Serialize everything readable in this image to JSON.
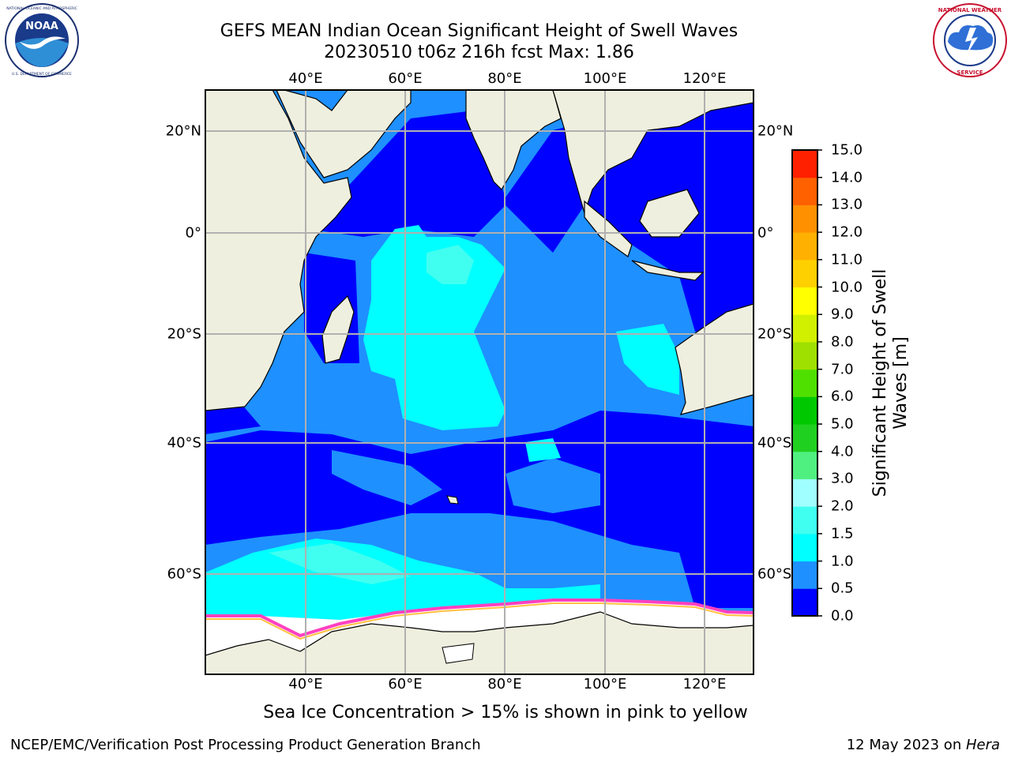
{
  "title_line1": "GEFS MEAN Indian Ocean Significant Height of Swell Waves",
  "title_line2": "20230510 t06z 216h fcst   Max: 1.86",
  "logos": {
    "left": {
      "name": "NOAA",
      "ring_text": "NATIONAL OCEANIC AND ATMOSPHERIC ADMINISTRATION",
      "bottom_text": "U.S. DEPARTMENT OF COMMERCE"
    },
    "right": {
      "name": "National Weather Service",
      "ring_text": "NATIONAL WEATHER SERVICE"
    }
  },
  "axes": {
    "lon_labels": [
      "40°E",
      "60°E",
      "80°E",
      "100°E",
      "120°E"
    ],
    "lat_labels": [
      "20°N",
      "0°",
      "20°S",
      "40°S",
      "60°S"
    ]
  },
  "colorbar": {
    "label": "Significant Height of Swell Waves [m]",
    "label_line1": "Significant Height of Swell",
    "label_line2": "Waves [m]",
    "ticks": [
      "15.0",
      "14.0",
      "13.0",
      "12.0",
      "11.0",
      "10.0",
      "9.0",
      "8.0",
      "7.0",
      "6.0",
      "5.0",
      "4.0",
      "3.0",
      "2.0",
      "1.5",
      "1.0",
      "0.5",
      "0.0"
    ],
    "levels": [
      0.0,
      0.5,
      1.0,
      1.5,
      2.0,
      3.0,
      4.0,
      5.0,
      6.0,
      7.0,
      8.0,
      9.0,
      10.0,
      11.0,
      12.0,
      13.0,
      14.0,
      15.0
    ],
    "colors": [
      "#0000ff",
      "#1e90ff",
      "#00ffff",
      "#40fff0",
      "#a0ffff",
      "#50f080",
      "#20d020",
      "#00c800",
      "#50e000",
      "#a0e000",
      "#d0f000",
      "#ffff00",
      "#ffd000",
      "#ffb000",
      "#ff9000",
      "#ff6000",
      "#ff2000"
    ]
  },
  "map_colors": {
    "land": "#efefdf",
    "deep_blue": "#0000ff",
    "mid_blue": "#1e90ff",
    "cyan": "#00ffff",
    "light_cyan": "#40fff0",
    "sea_ice": "#ffffff",
    "ice_edge": "#ff40c0",
    "ice_yellow": "#ffc040",
    "grid": "#b0b0b0"
  },
  "caption": "Sea Ice Concentration > 15% is shown in pink to yellow",
  "footer_left": "NCEP/EMC/Verification Post Processing Product Generation Branch",
  "footer_right_prefix": "12 May 2023 on ",
  "footer_right_host": "Hera"
}
